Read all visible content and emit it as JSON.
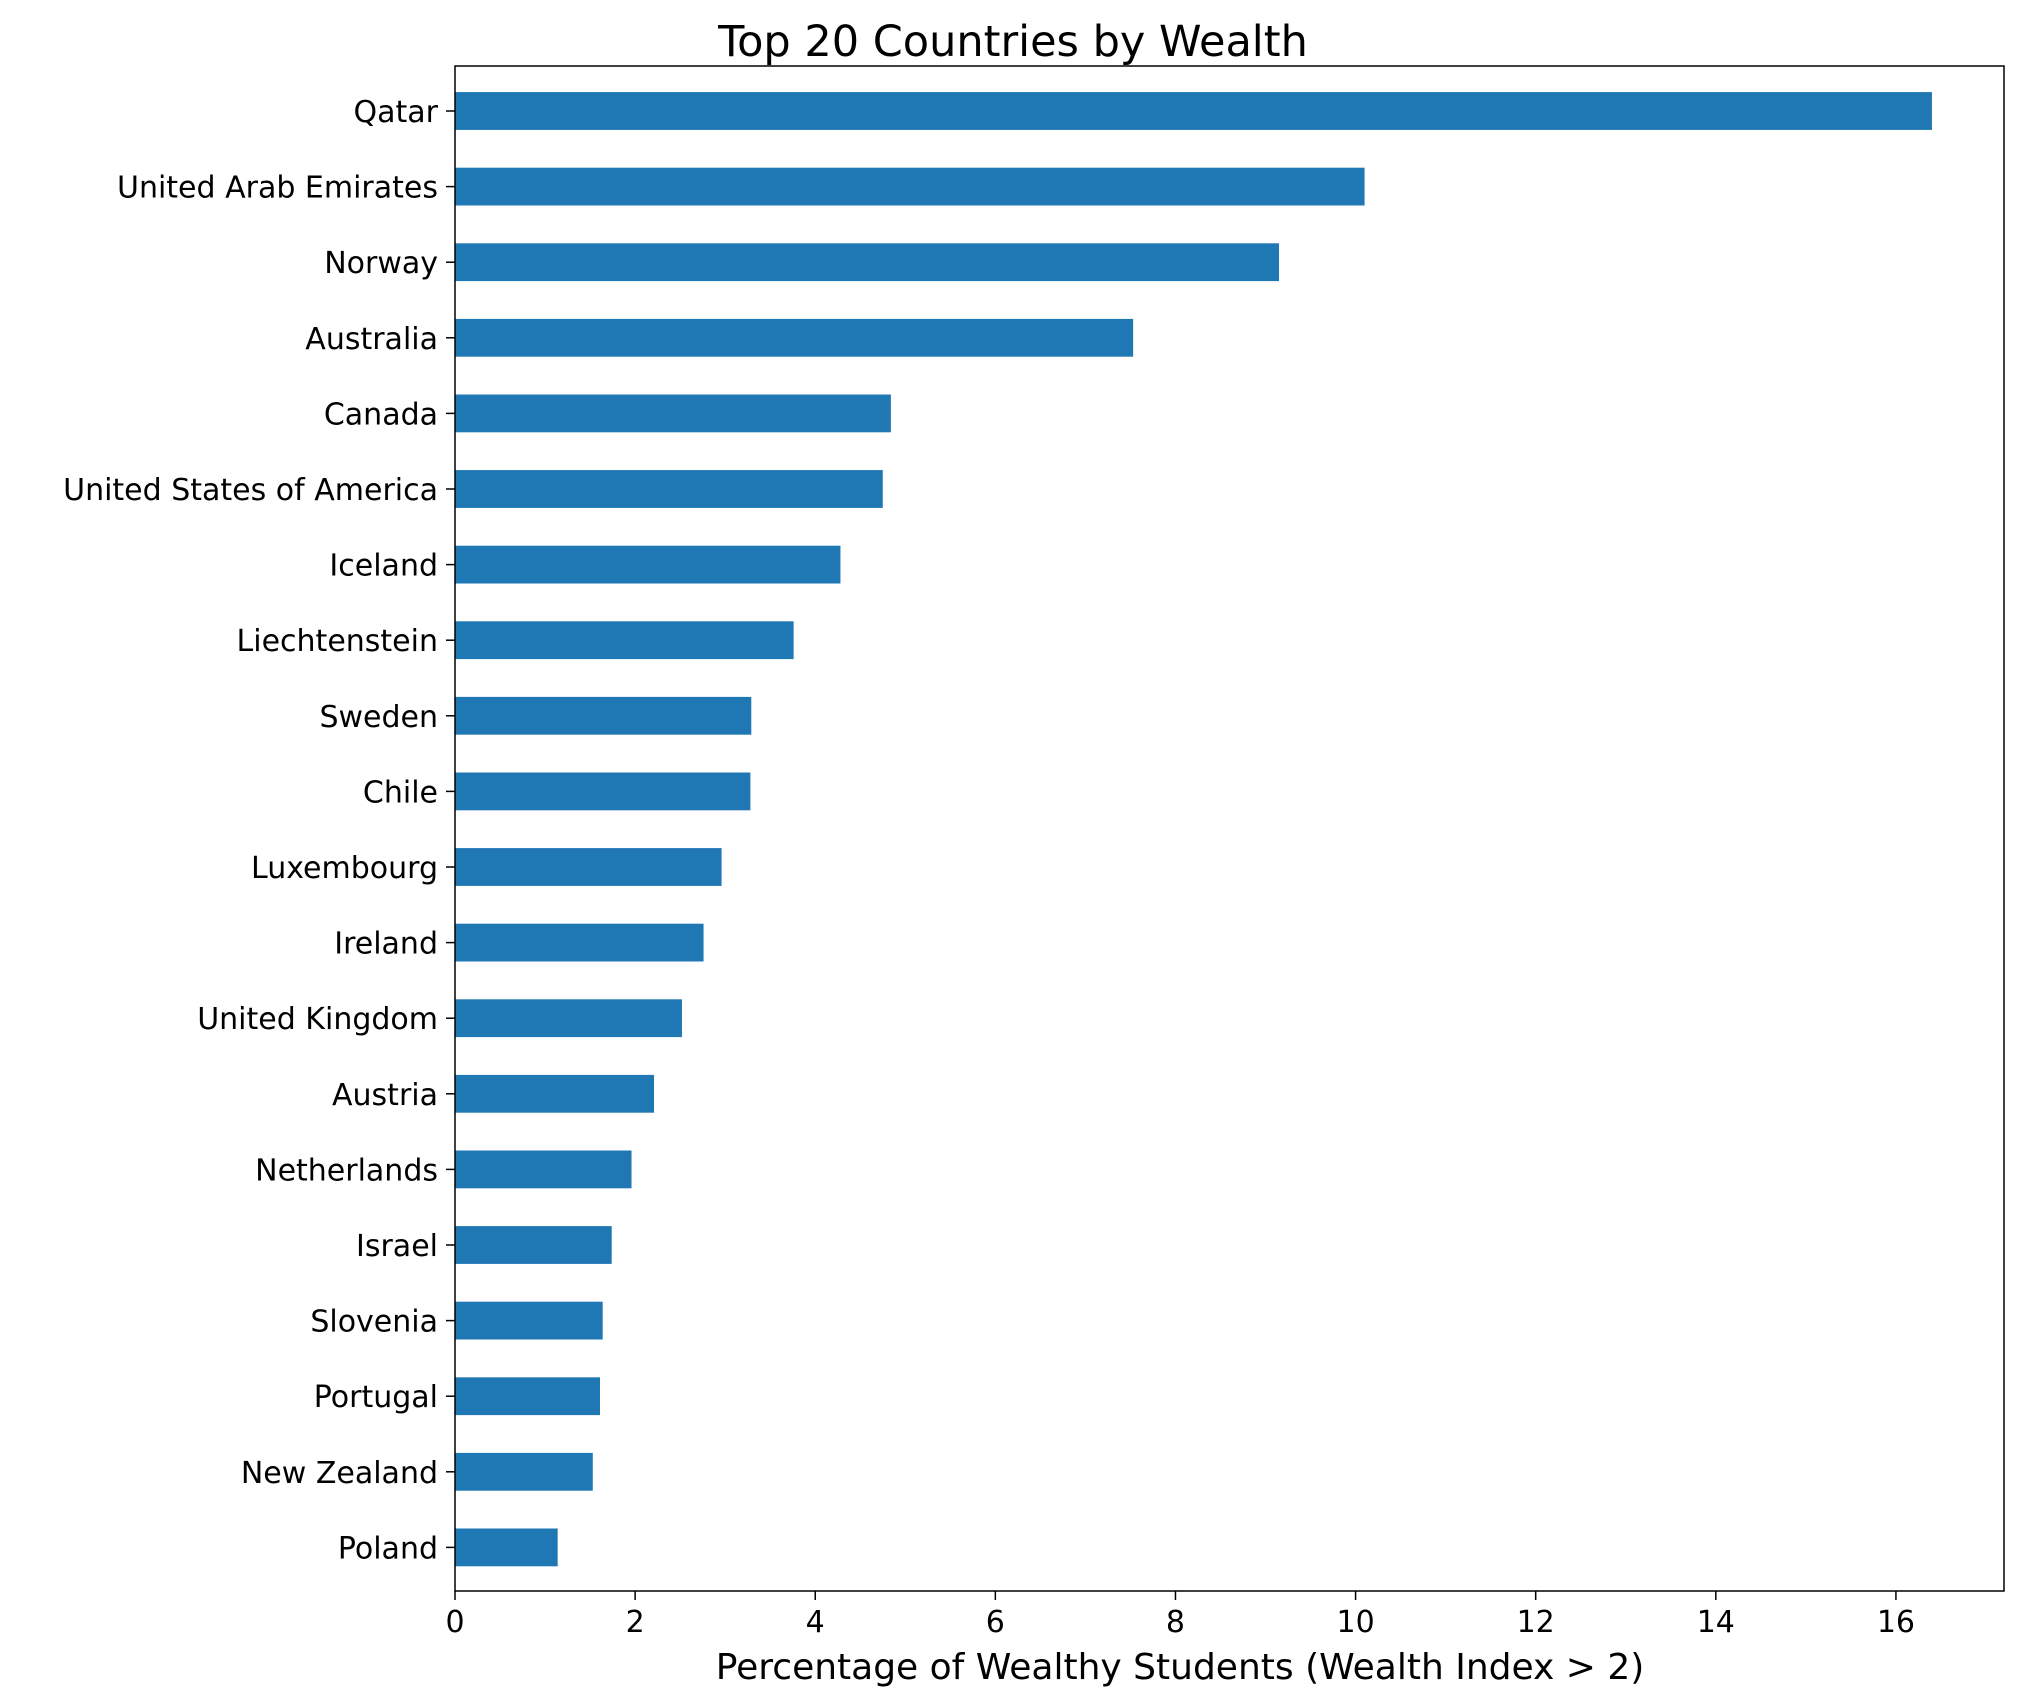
{
  "chart_data": {
    "type": "bar",
    "orientation": "horizontal",
    "title": "Top 20 Countries by Wealth",
    "xlabel": "Percentage of Wealthy Students (Wealth Index > 2)",
    "ylabel": "",
    "xlim": [
      0,
      17.2
    ],
    "xticks": [
      0,
      2,
      4,
      6,
      8,
      10,
      12,
      14,
      16
    ],
    "grid": false,
    "legend": "none",
    "bar_color": "#1f77b4",
    "categories": [
      "Qatar",
      "United Arab Emirates",
      "Norway",
      "Australia",
      "Canada",
      "United States of America",
      "Iceland",
      "Liechtenstein",
      "Sweden",
      "Chile",
      "Luxembourg",
      "Ireland",
      "United Kingdom",
      "Austria",
      "Netherlands",
      "Israel",
      "Slovenia",
      "Portugal",
      "New Zealand",
      "Poland"
    ],
    "values": [
      16.4,
      10.1,
      9.15,
      7.53,
      4.84,
      4.75,
      4.28,
      3.76,
      3.29,
      3.28,
      2.96,
      2.76,
      2.52,
      2.21,
      1.96,
      1.74,
      1.64,
      1.61,
      1.53,
      1.14
    ]
  }
}
